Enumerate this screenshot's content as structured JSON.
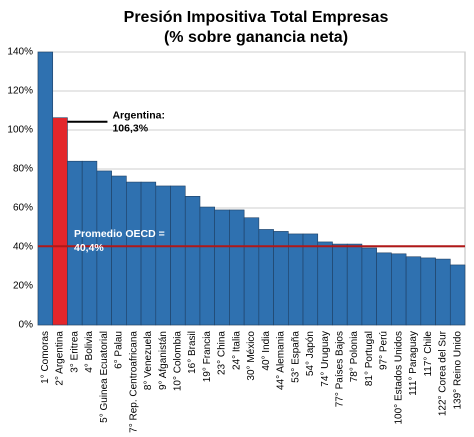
{
  "chart_data": {
    "type": "bar",
    "title": "Presión Impositiva Total Empresas",
    "subtitle": "(% sobre ganancia neta)",
    "categories": [
      "1° Comoras",
      "2° Argentina",
      "3° Eritrea",
      "4° Bolivia",
      "5° Guinea Ecuatorial",
      "6° Palau",
      "7° Rep. Centroafricana",
      "8° Venezuela",
      "9° Afganistán",
      "10° Colombia",
      "16° Brasil",
      "19° Francia",
      "23° China",
      "24° Italia",
      "30° México",
      "40° India",
      "44° Alemania",
      "53° España",
      "54° Japón",
      "74° Uruguay",
      "77° Países Bajos",
      "78° Polonia",
      "81° Portugal",
      "97° Perú",
      "100° Estados Unidos",
      "111° Paraguay",
      "117° Chile",
      "122° Corea del Sur",
      "139° Reino Unido"
    ],
    "values": [
      140,
      106.3,
      84,
      84,
      79,
      76.4,
      73.3,
      73.3,
      71.3,
      71.3,
      66,
      60.5,
      59,
      59,
      55,
      49,
      48,
      46.7,
      46.7,
      42.6,
      41.5,
      41.5,
      39.5,
      37,
      36.5,
      35,
      34.4,
      33.8,
      30.8
    ],
    "color": "#2f71b0",
    "highlight": {
      "index": 1,
      "color": "#e3262b",
      "annotation": [
        "Argentina:",
        "106,3%"
      ]
    },
    "reference_line": {
      "value": 40.4,
      "color": "#b01818",
      "annotation": [
        "Promedio OECD =",
        "40,4%"
      ]
    },
    "ylim": [
      0,
      140
    ],
    "yticks": [
      {
        "value": 0,
        "label": "0%"
      },
      {
        "value": 20,
        "label": "20%"
      },
      {
        "value": 40,
        "label": "40%"
      },
      {
        "value": 60,
        "label": "60%"
      },
      {
        "value": 80,
        "label": "80%"
      },
      {
        "value": 100,
        "label": "100%"
      },
      {
        "value": 120,
        "label": "120%"
      },
      {
        "value": 140,
        "label": "140%"
      }
    ],
    "grid": true
  }
}
